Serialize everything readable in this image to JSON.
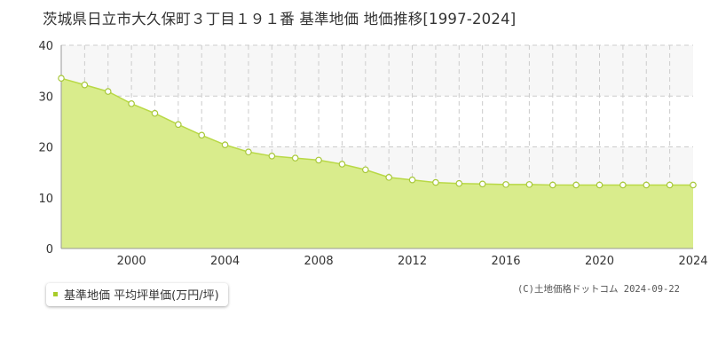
{
  "title": "茨城県日立市大久保町３丁目１９１番 基準地価 地価推移[1997-2024]",
  "legend_label": "基準地価 平均坪単価(万円/坪)",
  "copyright": "(C)土地価格ドットコム 2024-09-22",
  "colors": {
    "fill": "#d9ec8c",
    "line": "#b9d946",
    "point_fill": "#ffffff",
    "point_stroke": "#a8c83a",
    "grid": "#cccccc",
    "band": "#f7f7f7",
    "axis": "#999999",
    "tick_text": "#333333",
    "legend_swatch": "#a8cc2a"
  },
  "chart_data": {
    "type": "area",
    "title": "茨城県日立市大久保町３丁目１９１番 基準地価 地価推移[1997-2024]",
    "xlabel": "",
    "ylabel": "",
    "xlim": [
      1997,
      2024
    ],
    "ylim": [
      0,
      40
    ],
    "x_ticks": [
      2000,
      2004,
      2008,
      2012,
      2016,
      2020,
      2024
    ],
    "y_ticks": [
      0,
      10,
      20,
      30,
      40
    ],
    "grid": true,
    "legend": "bottom-left",
    "series": [
      {
        "name": "基準地価 平均坪単価(万円/坪)",
        "x": [
          1997,
          1998,
          1999,
          2000,
          2001,
          2002,
          2003,
          2004,
          2005,
          2006,
          2007,
          2008,
          2009,
          2010,
          2011,
          2012,
          2013,
          2014,
          2015,
          2016,
          2017,
          2018,
          2019,
          2020,
          2021,
          2022,
          2023,
          2024
        ],
        "values": [
          33.5,
          32.2,
          30.9,
          28.5,
          26.6,
          24.4,
          22.3,
          20.4,
          19.0,
          18.2,
          17.8,
          17.4,
          16.6,
          15.5,
          14.0,
          13.5,
          13.0,
          12.8,
          12.7,
          12.6,
          12.6,
          12.5,
          12.5,
          12.5,
          12.5,
          12.5,
          12.5,
          12.5
        ]
      }
    ]
  }
}
